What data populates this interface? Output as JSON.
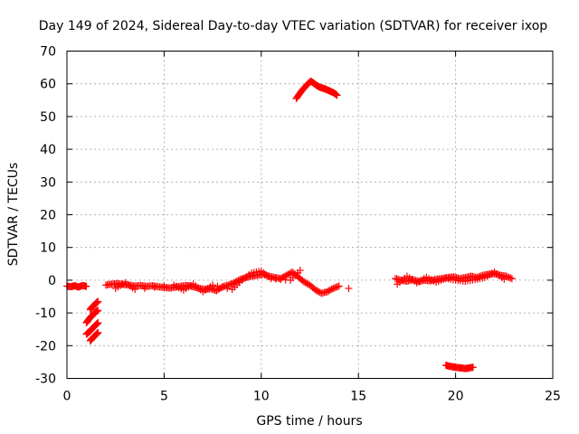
{
  "chart_data": {
    "type": "scatter",
    "title": "Day 149 of 2024, Sidereal Day-to-day VTEC variation (SDTVAR) for receiver ixop",
    "xlabel": "GPS time / hours",
    "ylabel": "SDTVAR / TECUs",
    "xlim": [
      0,
      25
    ],
    "ylim": [
      -30,
      70
    ],
    "xticks": [
      0,
      5,
      10,
      15,
      20,
      25
    ],
    "yticks": [
      -30,
      -20,
      -10,
      0,
      10,
      20,
      30,
      40,
      50,
      60,
      70
    ],
    "grid": true,
    "marker": "+",
    "color": "#ff0000",
    "series": [
      {
        "name": "SDTVAR",
        "segments": [
          {
            "x": [
              0.0,
              0.2,
              0.4,
              0.6,
              0.8,
              1.0
            ],
            "y": [
              -1.8,
              -2.0,
              -1.7,
              -2.1,
              -1.6,
              -1.9
            ]
          },
          {
            "x": [
              1.2,
              1.3,
              1.4,
              1.5,
              1.6
            ],
            "y": [
              -9.0,
              -8.2,
              -7.6,
              -7.0,
              -6.5
            ]
          },
          {
            "x": [
              1.0,
              1.1,
              1.2,
              1.3,
              1.4,
              1.5,
              1.6
            ],
            "y": [
              -13.0,
              -12.2,
              -11.4,
              -10.8,
              -10.2,
              -9.6,
              -9.2
            ]
          },
          {
            "x": [
              1.0,
              1.1,
              1.2,
              1.3,
              1.4,
              1.5,
              1.6
            ],
            "y": [
              -16.5,
              -16.0,
              -15.5,
              -14.8,
              -14.2,
              -13.6,
              -13.0
            ]
          },
          {
            "x": [
              1.2,
              1.3,
              1.4,
              1.5,
              1.6
            ],
            "y": [
              -18.5,
              -17.8,
              -17.2,
              -16.6,
              -16.0
            ]
          },
          {
            "x": [
              2.0,
              2.3,
              2.6,
              2.9,
              3.2,
              3.5,
              3.8,
              4.1,
              4.4,
              4.7,
              5.0,
              5.3,
              5.6,
              5.9,
              6.2,
              6.5,
              6.8,
              7.1,
              7.4,
              7.7,
              8.0,
              8.3,
              8.6,
              8.9,
              9.2,
              9.5,
              9.8,
              10.1,
              10.4,
              10.7,
              11.0,
              11.3,
              11.6,
              11.9,
              12.2,
              12.5,
              12.8,
              13.1,
              13.4,
              13.7,
              14.0
            ],
            "y": [
              -1.5,
              -1.2,
              -1.0,
              -1.3,
              -1.5,
              -1.8,
              -1.6,
              -1.9,
              -1.7,
              -2.0,
              -2.2,
              -2.4,
              -2.1,
              -1.8,
              -1.6,
              -2.0,
              -2.5,
              -2.8,
              -2.6,
              -3.2,
              -2.0,
              -1.5,
              -0.8,
              0.2,
              0.8,
              1.2,
              1.5,
              1.8,
              1.2,
              0.8,
              0.5,
              1.5,
              2.5,
              1.0,
              -0.5,
              -1.5,
              -3.0,
              -4.0,
              -3.5,
              -2.5,
              -1.8
            ]
          },
          {
            "x": [
              2.5,
              3.0,
              3.5,
              5.5,
              6.0,
              6.5,
              7.0,
              7.5,
              8.5,
              9.0,
              9.5,
              10.0,
              10.5,
              11.5,
              12.0
            ],
            "y": [
              -2.5,
              -0.8,
              -2.8,
              -1.5,
              -3.0,
              -1.2,
              -3.5,
              -1.5,
              -2.8,
              0.0,
              2.2,
              2.8,
              0.5,
              0.0,
              3.0
            ]
          },
          {
            "x": [
              14.5
            ],
            "y": [
              -2.5
            ]
          },
          {
            "x": [
              11.8,
              11.95,
              12.1,
              12.25,
              12.4,
              12.55,
              12.7,
              12.85,
              13.0,
              13.15,
              13.3,
              13.45,
              13.6,
              13.75,
              13.9
            ],
            "y": [
              55.5,
              56.8,
              58.0,
              59.0,
              60.0,
              60.8,
              60.2,
              59.5,
              59.0,
              58.7,
              58.4,
              58.0,
              57.6,
              57.2,
              56.5
            ]
          },
          {
            "x": [
              16.9,
              17.2,
              17.5,
              17.8,
              18.1,
              18.4,
              18.7,
              19.0,
              19.3,
              19.6,
              19.9,
              20.2,
              20.5,
              20.8,
              21.1,
              21.4,
              21.7,
              22.0,
              22.3,
              22.6,
              22.9
            ],
            "y": [
              0.5,
              0.0,
              -0.3,
              0.2,
              -0.4,
              0.0,
              -0.2,
              0.3,
              0.5,
              0.8,
              1.0,
              0.5,
              0.8,
              1.2,
              0.8,
              1.5,
              1.8,
              2.0,
              1.5,
              1.2,
              0.5
            ]
          },
          {
            "x": [
              17.0,
              17.5,
              18.0,
              18.5,
              19.0,
              19.5,
              20.0,
              20.5,
              21.0,
              21.5,
              22.0,
              22.5
            ],
            "y": [
              -1.2,
              1.2,
              -0.8,
              0.9,
              -0.6,
              0.6,
              0.0,
              -0.3,
              0.2,
              0.8,
              2.5,
              0.3
            ]
          },
          {
            "x": [
              19.5,
              19.7,
              19.9,
              20.1,
              20.3,
              20.5,
              20.7,
              20.9
            ],
            "y": [
              -26.0,
              -26.3,
              -26.5,
              -26.7,
              -26.8,
              -27.0,
              -26.8,
              -26.6
            ]
          }
        ]
      }
    ]
  }
}
